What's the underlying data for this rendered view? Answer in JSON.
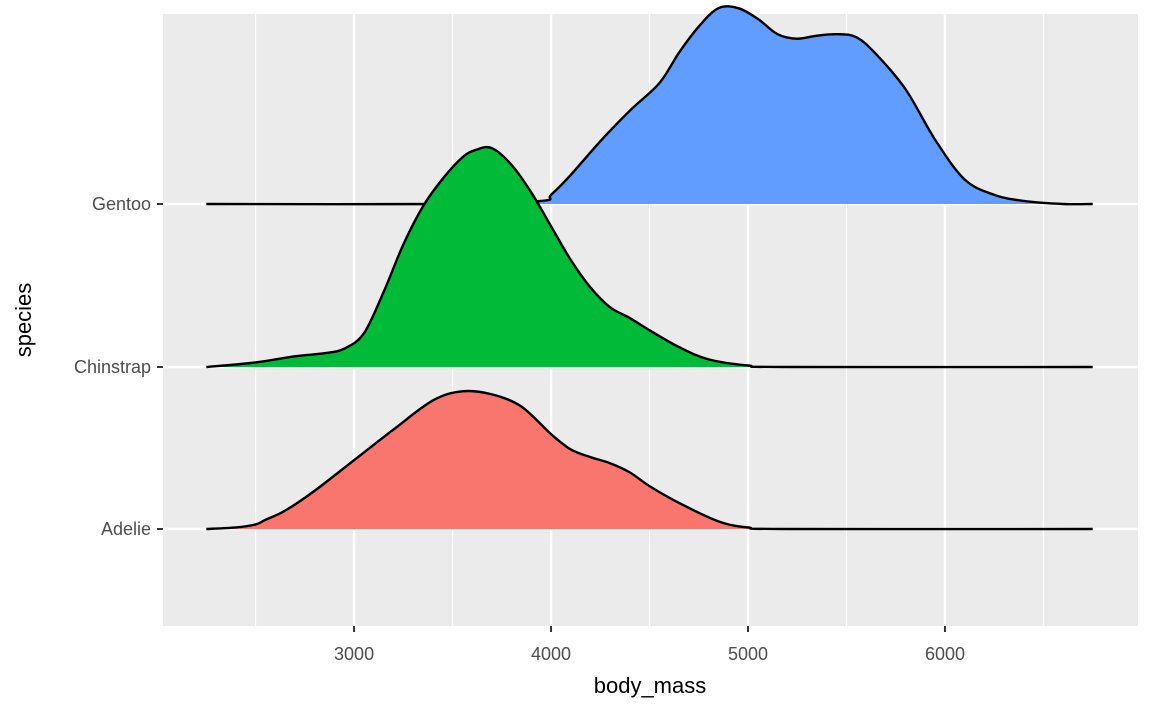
{
  "chart_data": {
    "type": "ridgeline",
    "xlabel": "body_mass",
    "ylabel": "species",
    "xlim": [
      2030,
      6980
    ],
    "x_ticks": [
      3000,
      4000,
      5000,
      6000
    ],
    "x_tick_labels": [
      "3000",
      "4000",
      "5000",
      "6000"
    ],
    "x_minor_ticks": [
      2500,
      3500,
      4500,
      5500,
      6500
    ],
    "grid": true,
    "legend": "none",
    "categories": [
      "Adelie",
      "Chinstrap",
      "Gentoo"
    ],
    "series": [
      {
        "name": "Adelie",
        "color": "#F8766D",
        "density_x": [
          2250,
          2400,
          2500,
          2550,
          2650,
          2800,
          3000,
          3200,
          3400,
          3550,
          3700,
          3850,
          4000,
          4100,
          4200,
          4300,
          4400,
          4500,
          4650,
          4850,
          5000,
          5200,
          6750
        ],
        "density_height": [
          0.0,
          0.01,
          0.03,
          0.06,
          0.12,
          0.25,
          0.45,
          0.65,
          0.84,
          0.9,
          0.88,
          0.8,
          0.62,
          0.52,
          0.47,
          0.43,
          0.37,
          0.28,
          0.17,
          0.05,
          0.01,
          0.0,
          0.0
        ]
      },
      {
        "name": "Chinstrap",
        "color": "#00BA38",
        "density_x": [
          2250,
          2500,
          2700,
          2850,
          2950,
          3050,
          3150,
          3250,
          3350,
          3450,
          3550,
          3620,
          3700,
          3800,
          3900,
          4000,
          4100,
          4200,
          4300,
          4400,
          4500,
          4650,
          4800,
          5000,
          5200,
          6750
        ],
        "density_height": [
          0.0,
          0.03,
          0.07,
          0.09,
          0.12,
          0.22,
          0.49,
          0.8,
          1.05,
          1.23,
          1.37,
          1.42,
          1.43,
          1.32,
          1.14,
          0.92,
          0.7,
          0.52,
          0.39,
          0.32,
          0.24,
          0.13,
          0.05,
          0.01,
          0.0,
          0.0
        ]
      },
      {
        "name": "Gentoo",
        "color": "#619CFF",
        "density_x": [
          2250,
          3500,
          3950,
          4000,
          4100,
          4250,
          4400,
          4550,
          4650,
          4750,
          4850,
          4950,
          5050,
          5150,
          5250,
          5350,
          5450,
          5550,
          5650,
          5800,
          5950,
          6100,
          6250,
          6400,
          6600,
          6750
        ],
        "density_height": [
          0.0,
          0.0,
          0.02,
          0.06,
          0.19,
          0.41,
          0.61,
          0.79,
          0.99,
          1.16,
          1.28,
          1.28,
          1.21,
          1.11,
          1.08,
          1.1,
          1.11,
          1.09,
          0.98,
          0.75,
          0.42,
          0.16,
          0.06,
          0.02,
          0.0,
          0.0
        ]
      }
    ]
  }
}
